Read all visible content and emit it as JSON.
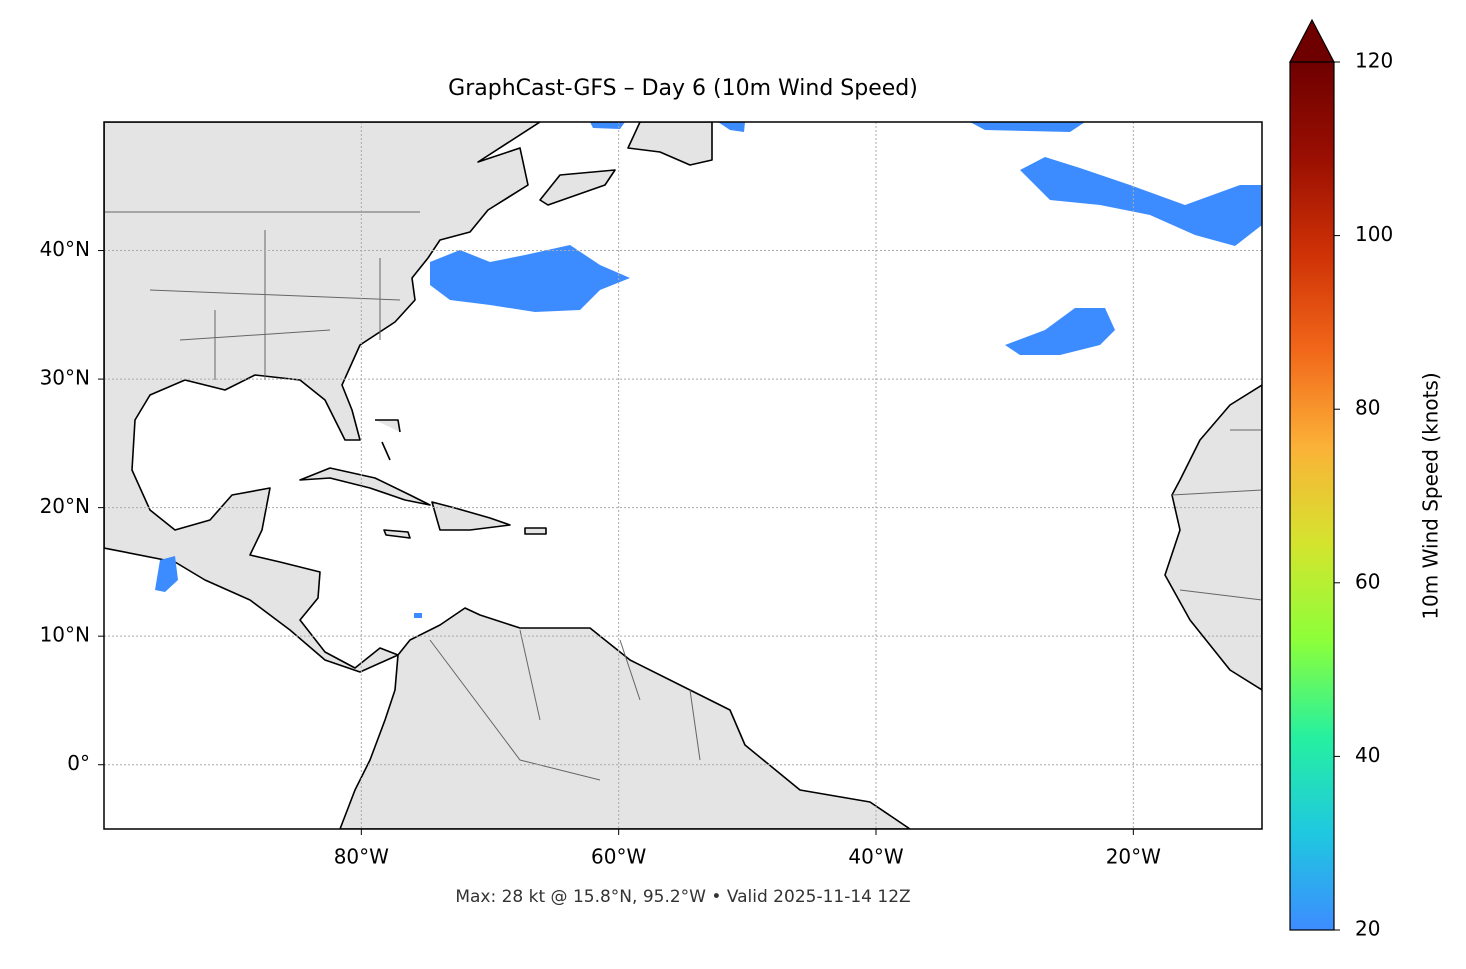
{
  "chart_data": {
    "type": "map",
    "title": "GraphCast-GFS – Day 6 (10m Wind Speed)",
    "footnote": "Max: 28 kt @ 15.8°N, 95.2°W • Valid 2025-11-14 12Z",
    "xlim": [
      -100,
      -10
    ],
    "ylim": [
      -5,
      50
    ],
    "xticks": [
      {
        "value": -80,
        "label": "80°W"
      },
      {
        "value": -60,
        "label": "60°W"
      },
      {
        "value": -40,
        "label": "40°W"
      },
      {
        "value": -20,
        "label": "20°W"
      }
    ],
    "yticks": [
      {
        "value": 0,
        "label": "0°"
      },
      {
        "value": 10,
        "label": "10°N"
      },
      {
        "value": 20,
        "label": "20°N"
      },
      {
        "value": 30,
        "label": "30°N"
      },
      {
        "value": 40,
        "label": "40°N"
      }
    ],
    "grid": true,
    "colorbar": {
      "label": "10m Wind Speed (knots)",
      "lim": [
        20,
        120
      ],
      "ticks": [
        20,
        40,
        60,
        80,
        100,
        120
      ],
      "colors": [
        "#3d8cff",
        "#1fc8e0",
        "#26f0a0",
        "#8cff3a",
        "#d4e42e",
        "#fbb238",
        "#f2681a",
        "#cf3206",
        "#9a0f02",
        "#6e0000"
      ]
    }
  }
}
